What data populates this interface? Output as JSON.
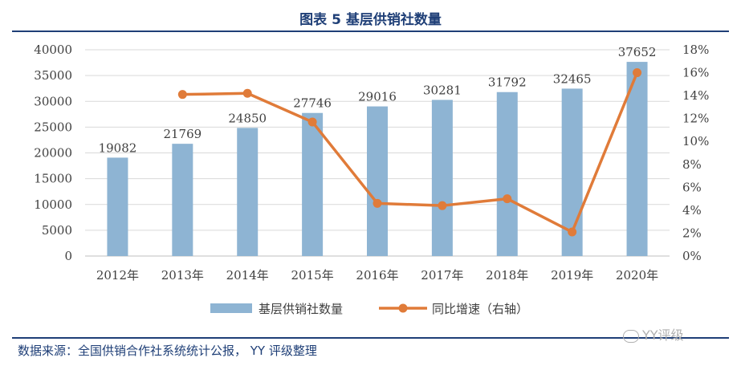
{
  "title": "图表 5 基层供销社数量",
  "source": "数据来源：全国供销合作社系统统计公报， YY 评级整理",
  "watermark": "YY评级",
  "colors": {
    "bar": "#8eb4d3",
    "line": "#e07b39",
    "title": "#1f3f77",
    "axis": "#404040",
    "grid": "#d9d9d9"
  },
  "chart_data": {
    "type": "bar",
    "categories": [
      "2012年",
      "2013年",
      "2014年",
      "2015年",
      "2016年",
      "2017年",
      "2018年",
      "2019年",
      "2020年"
    ],
    "series": [
      {
        "name": "基层供销社数量",
        "axis": "left",
        "type": "bar",
        "values": [
          19082,
          21769,
          24850,
          27746,
          29016,
          30281,
          31792,
          32465,
          37652
        ]
      },
      {
        "name": "同比增速（右轴）",
        "axis": "right",
        "type": "line",
        "values": [
          null,
          14.1,
          14.2,
          11.7,
          4.6,
          4.4,
          5.0,
          2.1,
          16.0
        ]
      }
    ],
    "ylim_left": [
      0,
      40000
    ],
    "yticks_left": [
      "0",
      "5000",
      "10000",
      "15000",
      "20000",
      "25000",
      "30000",
      "35000",
      "40000"
    ],
    "ylim_right": [
      0,
      18
    ],
    "yticks_right": [
      "0%",
      "2%",
      "4%",
      "6%",
      "8%",
      "10%",
      "12%",
      "14%",
      "16%",
      "18%"
    ],
    "grid": true,
    "legend_position": "bottom"
  }
}
